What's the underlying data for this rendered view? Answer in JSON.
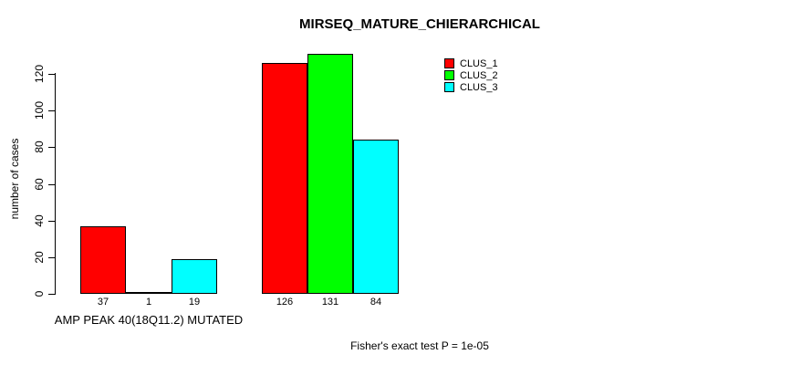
{
  "chart_data": {
    "type": "bar",
    "title": "MIRSEQ_MATURE_CHIERARCHICAL",
    "ylabel": "number of cases",
    "xlabel": "AMP PEAK 40(18Q11.2) MUTATED",
    "footnote": "Fisher's exact test P = 1e-05",
    "yticks": [
      0,
      20,
      40,
      60,
      80,
      100,
      120
    ],
    "ylim": [
      0,
      131
    ],
    "grid": false,
    "legend_position": "top-right",
    "categories": [
      "AMP PEAK 40(18Q11.2) MUTATED",
      ""
    ],
    "series": [
      {
        "name": "CLUS_1",
        "color": "#ff0000",
        "values": [
          37,
          126
        ]
      },
      {
        "name": "CLUS_2",
        "color": "#00ff00",
        "values": [
          1,
          131
        ]
      },
      {
        "name": "CLUS_3",
        "color": "#00ffff",
        "values": [
          19,
          84
        ]
      }
    ],
    "bar_value_labels": [
      [
        37,
        1,
        19
      ],
      [
        126,
        131,
        84
      ]
    ],
    "colors": {
      "axis": "#000000",
      "text": "#000000",
      "background": "#ffffff"
    }
  }
}
